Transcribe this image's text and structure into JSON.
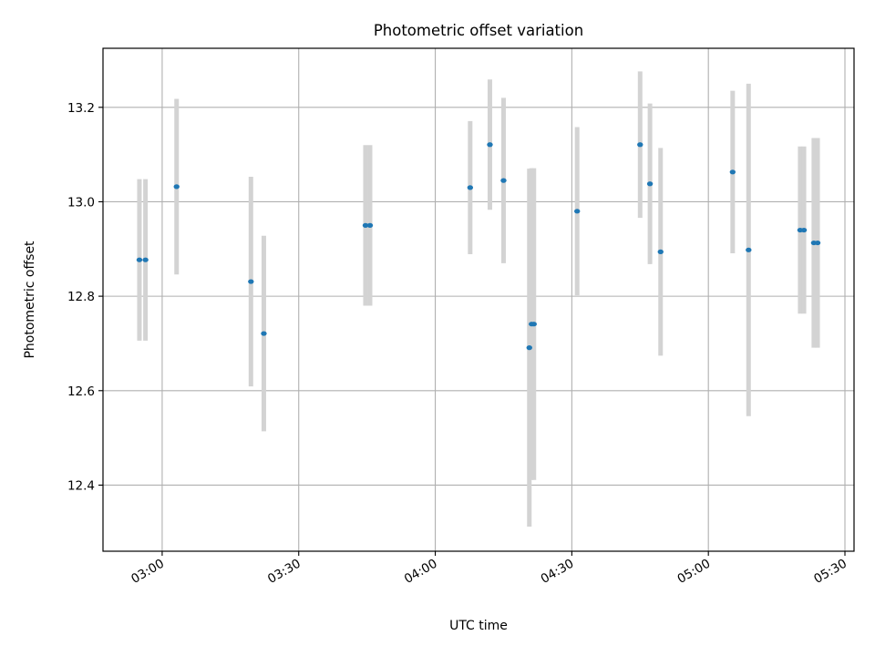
{
  "chart_data": {
    "type": "scatter",
    "title": "Photometric offset variation",
    "xlabel": "UTC time",
    "ylabel": "Photometric offset",
    "grid": true,
    "xlim": [
      "02:47",
      "05:32"
    ],
    "ylim": [
      12.26,
      13.325
    ],
    "x_ticks": [
      "03:00",
      "03:30",
      "04:00",
      "04:30",
      "05:00",
      "05:30"
    ],
    "y_ticks": [
      "12.4",
      "12.6",
      "12.8",
      "13.0",
      "13.2"
    ],
    "colors": {
      "marker": "#1f77b4",
      "errorbar": "#d3d3d3",
      "grid": "#b0b0b0"
    },
    "points": [
      {
        "x": "02:55:00",
        "y": 12.877,
        "err": 0.171
      },
      {
        "x": "02:56:20",
        "y": 12.877,
        "err": 0.171
      },
      {
        "x": "03:03:10",
        "y": 13.032,
        "err": 0.186
      },
      {
        "x": "03:19:30",
        "y": 12.831,
        "err": 0.222
      },
      {
        "x": "03:22:20",
        "y": 12.721,
        "err": 0.207
      },
      {
        "x": "03:44:40",
        "y": 12.95,
        "err": 0.17
      },
      {
        "x": "03:45:40",
        "y": 12.95,
        "err": 0.17
      },
      {
        "x": "04:07:40",
        "y": 13.03,
        "err": 0.141
      },
      {
        "x": "04:12:00",
        "y": 13.121,
        "err": 0.138
      },
      {
        "x": "04:15:00",
        "y": 13.045,
        "err": 0.175
      },
      {
        "x": "04:20:40",
        "y": 12.691,
        "err": 0.379
      },
      {
        "x": "04:21:10",
        "y": 12.741,
        "err": 0.33
      },
      {
        "x": "04:21:40",
        "y": 12.741,
        "err": 0.33
      },
      {
        "x": "04:31:10",
        "y": 12.98,
        "err": 0.178
      },
      {
        "x": "04:45:00",
        "y": 13.121,
        "err": 0.155
      },
      {
        "x": "04:47:10",
        "y": 13.038,
        "err": 0.17
      },
      {
        "x": "04:49:30",
        "y": 12.894,
        "err": 0.22
      },
      {
        "x": "05:05:20",
        "y": 13.063,
        "err": 0.172
      },
      {
        "x": "05:08:50",
        "y": 12.898,
        "err": 0.352
      },
      {
        "x": "05:20:10",
        "y": 12.94,
        "err": 0.177
      },
      {
        "x": "05:21:00",
        "y": 12.94,
        "err": 0.177
      },
      {
        "x": "05:23:10",
        "y": 12.913,
        "err": 0.222
      },
      {
        "x": "05:24:00",
        "y": 12.913,
        "err": 0.222
      }
    ]
  }
}
